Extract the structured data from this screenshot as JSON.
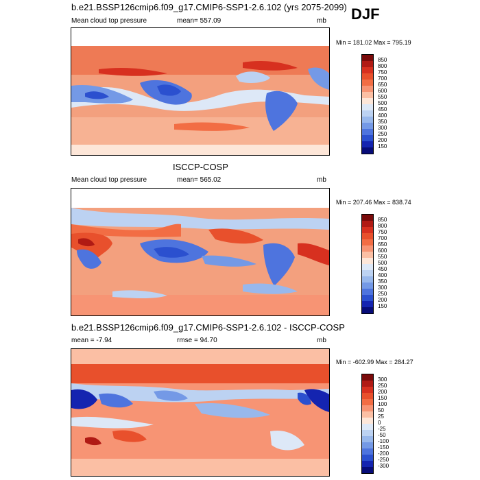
{
  "season": "DJF",
  "panels": [
    {
      "title": "b.e21.BSSP126cmip6.f09_g17.CMIP6-SSP1-2.6.102 (yrs 2075-2099)",
      "left_label": "Mean cloud top pressure",
      "center_label": "mean= 557.09",
      "right_label": "mb",
      "minmax": "Min = 181.02 Max = 795.19",
      "colorbar": {
        "labels": [
          "850",
          "800",
          "750",
          "700",
          "650",
          "600",
          "550",
          "500",
          "450",
          "400",
          "350",
          "300",
          "250",
          "200",
          "150"
        ],
        "colors": [
          "#7a0a0a",
          "#b01a14",
          "#d7301f",
          "#e8502c",
          "#f26d44",
          "#f79474",
          "#fbbfa4",
          "#fde6d8",
          "#dde8f7",
          "#bcd2f2",
          "#98b8ec",
          "#7499e6",
          "#4e74de",
          "#2b50cf",
          "#1424b0",
          "#070c78"
        ]
      }
    },
    {
      "title": "ISCCP-COSP",
      "left_label": "Mean cloud top pressure",
      "center_label": "mean= 565.02",
      "right_label": "mb",
      "minmax": "Min = 207.46 Max = 838.74",
      "colorbar": {
        "labels": [
          "850",
          "800",
          "750",
          "700",
          "650",
          "600",
          "550",
          "500",
          "450",
          "400",
          "350",
          "300",
          "250",
          "200",
          "150"
        ],
        "colors": [
          "#7a0a0a",
          "#b01a14",
          "#d7301f",
          "#e8502c",
          "#f26d44",
          "#f79474",
          "#fbbfa4",
          "#fde6d8",
          "#dde8f7",
          "#bcd2f2",
          "#98b8ec",
          "#7499e6",
          "#4e74de",
          "#2b50cf",
          "#1424b0",
          "#070c78"
        ]
      }
    },
    {
      "title": "b.e21.BSSP126cmip6.f09_g17.CMIP6-SSP1-2.6.102 - ISCCP-COSP",
      "left_label": "mean = -7.94",
      "center_label": "rmse = 94.70",
      "right_label": "mb",
      "minmax": "Min = -602.99 Max = 284.27",
      "colorbar": {
        "labels": [
          "300",
          "250",
          "200",
          "150",
          "100",
          "50",
          "25",
          "0",
          "-25",
          "-50",
          "-100",
          "-150",
          "-200",
          "-250",
          "-300"
        ],
        "colors": [
          "#7a0a0a",
          "#b01a14",
          "#d7301f",
          "#e8502c",
          "#f26d44",
          "#f79474",
          "#fbbfa4",
          "#fde6d8",
          "#dde8f7",
          "#bcd2f2",
          "#98b8ec",
          "#7499e6",
          "#4e74de",
          "#2b50cf",
          "#1424b0",
          "#070c78"
        ]
      }
    }
  ]
}
